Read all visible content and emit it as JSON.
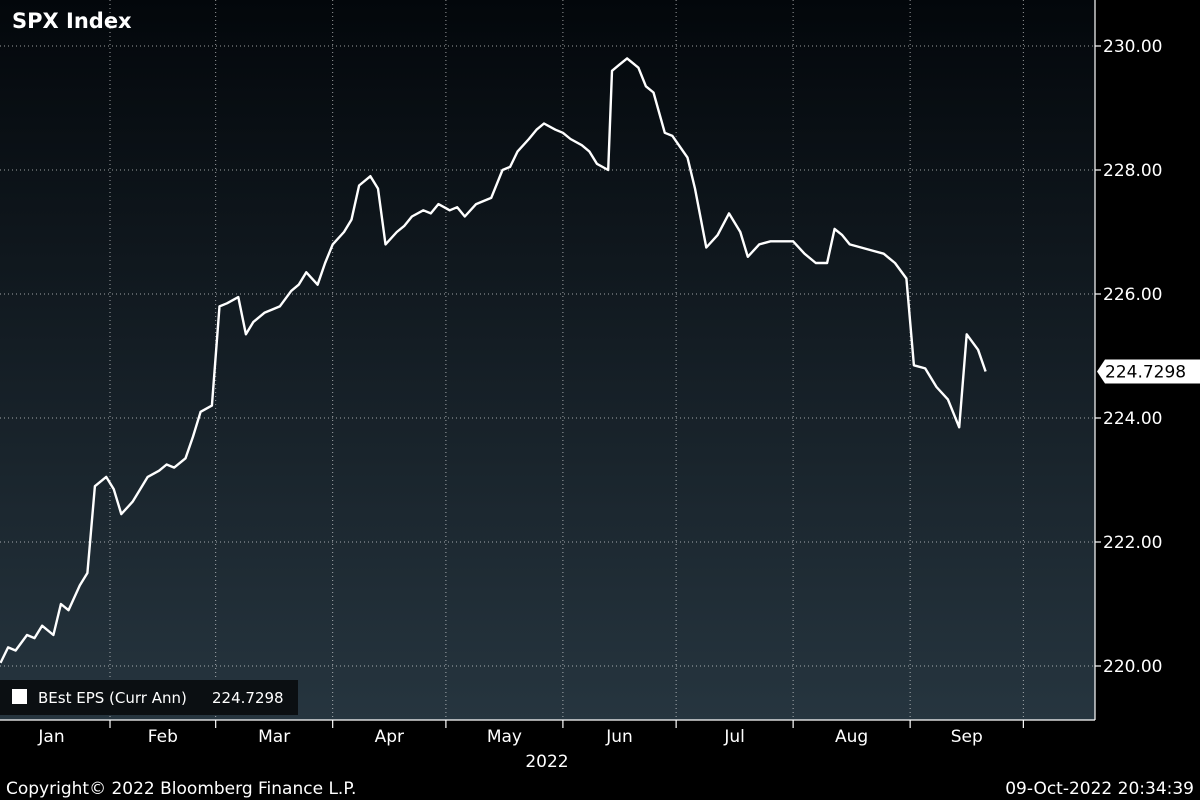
{
  "chart_data": {
    "type": "line",
    "title": "SPX Index",
    "x_year_label": "2022",
    "months": [
      "Jan",
      "Feb",
      "Mar",
      "Apr",
      "May",
      "Jun",
      "Jul",
      "Aug",
      "Sep"
    ],
    "yticks": [
      "220.00",
      "222.00",
      "224.00",
      "226.00",
      "228.00",
      "230.00"
    ],
    "ylim": [
      219.0,
      231.2
    ],
    "grid": true,
    "legend": "bottom-left",
    "series": [
      {
        "name": "BEst EPS (Curr Ann)",
        "last_value_label": "224.7298",
        "color": "#ffffff",
        "values": [
          {
            "x": "2022-01-03",
            "y": 220.05
          },
          {
            "x": "2022-01-05",
            "y": 220.3
          },
          {
            "x": "2022-01-07",
            "y": 220.25
          },
          {
            "x": "2022-01-10",
            "y": 220.5
          },
          {
            "x": "2022-01-12",
            "y": 220.45
          },
          {
            "x": "2022-01-14",
            "y": 220.65
          },
          {
            "x": "2022-01-17",
            "y": 220.5
          },
          {
            "x": "2022-01-19",
            "y": 221.0
          },
          {
            "x": "2022-01-21",
            "y": 220.9
          },
          {
            "x": "2022-01-24",
            "y": 221.3
          },
          {
            "x": "2022-01-26",
            "y": 221.5
          },
          {
            "x": "2022-01-28",
            "y": 222.9
          },
          {
            "x": "2022-01-31",
            "y": 223.05
          },
          {
            "x": "2022-02-02",
            "y": 222.85
          },
          {
            "x": "2022-02-04",
            "y": 222.45
          },
          {
            "x": "2022-02-07",
            "y": 222.65
          },
          {
            "x": "2022-02-09",
            "y": 222.85
          },
          {
            "x": "2022-02-11",
            "y": 223.05
          },
          {
            "x": "2022-02-14",
            "y": 223.15
          },
          {
            "x": "2022-02-16",
            "y": 223.25
          },
          {
            "x": "2022-02-18",
            "y": 223.2
          },
          {
            "x": "2022-02-21",
            "y": 223.35
          },
          {
            "x": "2022-02-23",
            "y": 223.7
          },
          {
            "x": "2022-02-25",
            "y": 224.1
          },
          {
            "x": "2022-02-28",
            "y": 224.2
          },
          {
            "x": "2022-03-02",
            "y": 225.8
          },
          {
            "x": "2022-03-04",
            "y": 225.85
          },
          {
            "x": "2022-03-07",
            "y": 225.95
          },
          {
            "x": "2022-03-09",
            "y": 225.35
          },
          {
            "x": "2022-03-11",
            "y": 225.55
          },
          {
            "x": "2022-03-14",
            "y": 225.7
          },
          {
            "x": "2022-03-16",
            "y": 225.75
          },
          {
            "x": "2022-03-18",
            "y": 225.8
          },
          {
            "x": "2022-03-21",
            "y": 226.05
          },
          {
            "x": "2022-03-23",
            "y": 226.15
          },
          {
            "x": "2022-03-25",
            "y": 226.35
          },
          {
            "x": "2022-03-28",
            "y": 226.15
          },
          {
            "x": "2022-03-30",
            "y": 226.5
          },
          {
            "x": "2022-04-01",
            "y": 226.8
          },
          {
            "x": "2022-04-04",
            "y": 227.0
          },
          {
            "x": "2022-04-06",
            "y": 227.2
          },
          {
            "x": "2022-04-08",
            "y": 227.75
          },
          {
            "x": "2022-04-11",
            "y": 227.9
          },
          {
            "x": "2022-04-13",
            "y": 227.7
          },
          {
            "x": "2022-04-15",
            "y": 226.8
          },
          {
            "x": "2022-04-18",
            "y": 227.0
          },
          {
            "x": "2022-04-20",
            "y": 227.1
          },
          {
            "x": "2022-04-22",
            "y": 227.25
          },
          {
            "x": "2022-04-25",
            "y": 227.35
          },
          {
            "x": "2022-04-27",
            "y": 227.3
          },
          {
            "x": "2022-04-29",
            "y": 227.45
          },
          {
            "x": "2022-05-02",
            "y": 227.35
          },
          {
            "x": "2022-05-04",
            "y": 227.4
          },
          {
            "x": "2022-05-06",
            "y": 227.25
          },
          {
            "x": "2022-05-09",
            "y": 227.45
          },
          {
            "x": "2022-05-11",
            "y": 227.5
          },
          {
            "x": "2022-05-13",
            "y": 227.55
          },
          {
            "x": "2022-05-16",
            "y": 228.0
          },
          {
            "x": "2022-05-18",
            "y": 228.05
          },
          {
            "x": "2022-05-20",
            "y": 228.3
          },
          {
            "x": "2022-05-23",
            "y": 228.5
          },
          {
            "x": "2022-05-25",
            "y": 228.65
          },
          {
            "x": "2022-05-27",
            "y": 228.75
          },
          {
            "x": "2022-05-30",
            "y": 228.65
          },
          {
            "x": "2022-06-01",
            "y": 228.6
          },
          {
            "x": "2022-06-03",
            "y": 228.5
          },
          {
            "x": "2022-06-06",
            "y": 228.4
          },
          {
            "x": "2022-06-08",
            "y": 228.3
          },
          {
            "x": "2022-06-10",
            "y": 228.1
          },
          {
            "x": "2022-06-13",
            "y": 228.0
          },
          {
            "x": "2022-06-14",
            "y": 229.6
          },
          {
            "x": "2022-06-16",
            "y": 229.7
          },
          {
            "x": "2022-06-18",
            "y": 229.8
          },
          {
            "x": "2022-06-21",
            "y": 229.65
          },
          {
            "x": "2022-06-23",
            "y": 229.35
          },
          {
            "x": "2022-06-25",
            "y": 229.25
          },
          {
            "x": "2022-06-28",
            "y": 228.6
          },
          {
            "x": "2022-06-30",
            "y": 228.55
          },
          {
            "x": "2022-07-04",
            "y": 228.2
          },
          {
            "x": "2022-07-06",
            "y": 227.7
          },
          {
            "x": "2022-07-09",
            "y": 226.75
          },
          {
            "x": "2022-07-12",
            "y": 226.95
          },
          {
            "x": "2022-07-15",
            "y": 227.3
          },
          {
            "x": "2022-07-18",
            "y": 227.0
          },
          {
            "x": "2022-07-20",
            "y": 226.6
          },
          {
            "x": "2022-07-23",
            "y": 226.8
          },
          {
            "x": "2022-07-26",
            "y": 226.85
          },
          {
            "x": "2022-07-29",
            "y": 226.85
          },
          {
            "x": "2022-08-01",
            "y": 226.85
          },
          {
            "x": "2022-08-04",
            "y": 226.65
          },
          {
            "x": "2022-08-07",
            "y": 226.5
          },
          {
            "x": "2022-08-10",
            "y": 226.5
          },
          {
            "x": "2022-08-12",
            "y": 227.05
          },
          {
            "x": "2022-08-14",
            "y": 226.95
          },
          {
            "x": "2022-08-16",
            "y": 226.8
          },
          {
            "x": "2022-08-19",
            "y": 226.75
          },
          {
            "x": "2022-08-22",
            "y": 226.7
          },
          {
            "x": "2022-08-25",
            "y": 226.65
          },
          {
            "x": "2022-08-28",
            "y": 226.5
          },
          {
            "x": "2022-08-31",
            "y": 226.25
          },
          {
            "x": "2022-09-02",
            "y": 224.85
          },
          {
            "x": "2022-09-05",
            "y": 224.8
          },
          {
            "x": "2022-09-08",
            "y": 224.5
          },
          {
            "x": "2022-09-11",
            "y": 224.3
          },
          {
            "x": "2022-09-14",
            "y": 223.85
          },
          {
            "x": "2022-09-16",
            "y": 225.35
          },
          {
            "x": "2022-09-19",
            "y": 225.1
          },
          {
            "x": "2022-09-21",
            "y": 224.75
          }
        ]
      }
    ]
  },
  "footer": {
    "copyright": "Copyright© 2022 Bloomberg Finance L.P.",
    "timestamp": "09-Oct-2022 20:34:39"
  }
}
